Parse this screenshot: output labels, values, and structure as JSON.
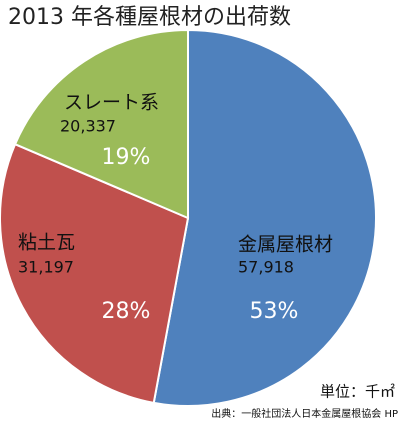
{
  "chart_data": {
    "type": "pie",
    "title": "2013 年各種屋根材の出荷数",
    "categories": [
      "金属屋根材",
      "粘土瓦",
      "スレート系"
    ],
    "values": [
      57918,
      31197,
      20337
    ],
    "value_labels": [
      "57,918",
      "31,197",
      "20,337"
    ],
    "percents": [
      53,
      28,
      19
    ],
    "percent_labels": [
      "53%",
      "28%",
      "19%"
    ],
    "colors": [
      "#4f81bd",
      "#c0504d",
      "#9bbb59"
    ],
    "unit": "単位：千㎡",
    "source": "出典：一般社団法人日本金属屋根協会 HP"
  }
}
